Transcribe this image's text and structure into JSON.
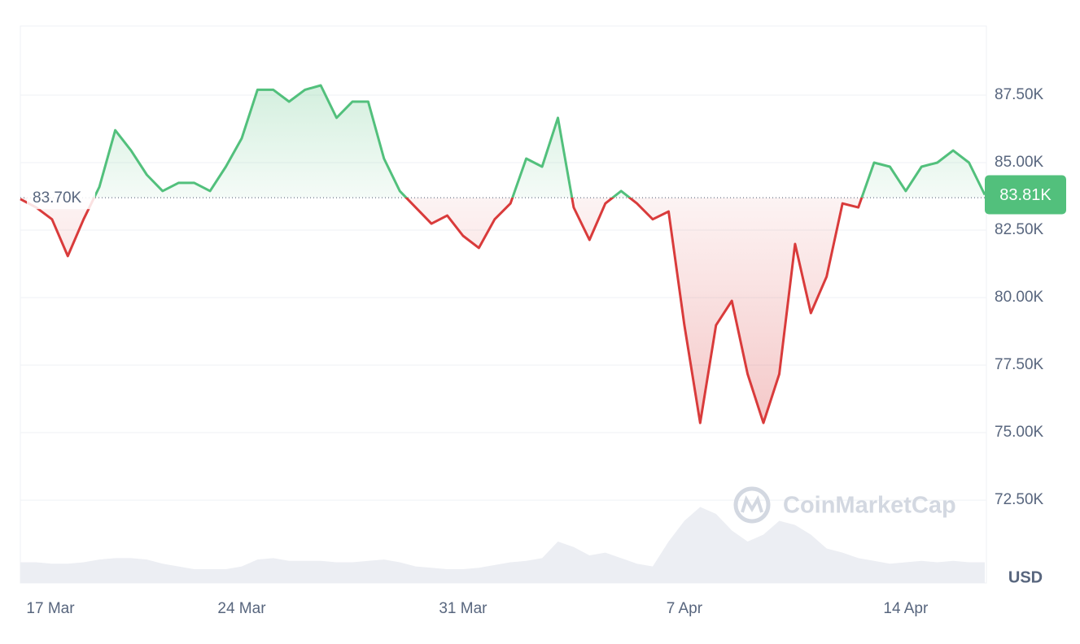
{
  "chart_data": {
    "type": "baseline-line",
    "x": [
      "17 Mar",
      null,
      null,
      null,
      null,
      null,
      null,
      null,
      null,
      null,
      null,
      null,
      null,
      null,
      "24 Mar",
      null,
      null,
      null,
      null,
      null,
      null,
      null,
      null,
      null,
      null,
      null,
      null,
      null,
      "31 Mar",
      null,
      null,
      null,
      null,
      null,
      null,
      null,
      null,
      null,
      null,
      null,
      null,
      null,
      "7 Apr",
      null,
      null,
      null,
      null,
      null,
      null,
      null,
      null,
      null,
      null,
      null,
      null,
      null,
      "14 Apr",
      null,
      null,
      null,
      null,
      null
    ],
    "series": [
      {
        "values": [
          83650,
          83340,
          82900,
          81540,
          82900,
          84100,
          86200,
          85450,
          84550,
          83950,
          84250,
          84250,
          83950,
          84850,
          85900,
          87700,
          87700,
          87260,
          87700,
          87860,
          86660,
          87260,
          87260,
          85150,
          83950,
          83340,
          82740,
          83040,
          82290,
          81840,
          82900,
          83490,
          85150,
          84850,
          86660,
          83340,
          82140,
          83490,
          83950,
          83490,
          82900,
          83190,
          78980,
          75360,
          78980,
          79880,
          77170,
          75360,
          77170,
          81990,
          79430,
          80780,
          83490,
          83340,
          85000,
          84850,
          83950,
          84850,
          85000,
          85450,
          85000,
          83810
        ]
      }
    ],
    "up_color": "#52c07c",
    "down_color": "#d93b3b",
    "reference": {
      "value": 83700,
      "label": "83.70K"
    },
    "current_price": {
      "value": 83810,
      "label": "83.81K"
    },
    "volume": {
      "color": "#eceef3",
      "ylim": [
        0,
        100
      ],
      "values": [
        15,
        15,
        14,
        14,
        15,
        17,
        18,
        18,
        17,
        14,
        12,
        10,
        10,
        10,
        12,
        17,
        18,
        16,
        16,
        16,
        15,
        15,
        16,
        17,
        15,
        12,
        11,
        10,
        10,
        11,
        13,
        15,
        16,
        18,
        30,
        26,
        20,
        22,
        18,
        14,
        12,
        30,
        45,
        55,
        50,
        38,
        30,
        35,
        45,
        42,
        35,
        25,
        22,
        18,
        16,
        14,
        15,
        16,
        15,
        16,
        15,
        15
      ]
    },
    "ylim": [
      69430,
      90060
    ],
    "yticks": [
      {
        "value": 72500,
        "label": "72.50K"
      },
      {
        "value": 75000,
        "label": "75.00K"
      },
      {
        "value": 77500,
        "label": "77.50K"
      },
      {
        "value": 80000,
        "label": "80.00K"
      },
      {
        "value": 82500,
        "label": "82.50K"
      },
      {
        "value": 85000,
        "label": "85.00K"
      },
      {
        "value": 87500,
        "label": "87.50K"
      }
    ],
    "y_axis_label": "USD",
    "watermark": "CoinMarketCap",
    "grid": true
  }
}
